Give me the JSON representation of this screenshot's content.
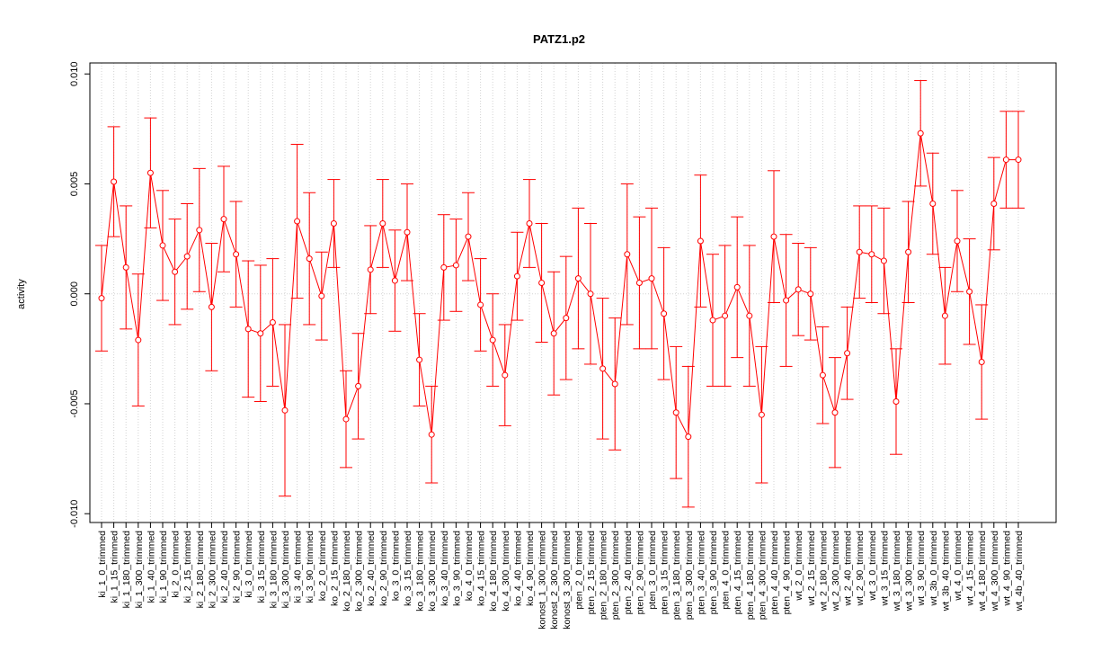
{
  "chart_data": {
    "type": "line",
    "title": "PATZ1.p2",
    "y_label": "activity",
    "color": "#ff0000",
    "grid": true,
    "categories": [
      "ki_1_0_trimmed",
      "ki_1_15_trimmed",
      "ki_1_180_trimmed",
      "ki_1_300_trimmed",
      "ki_1_40_trimmed",
      "ki_1_90_trimmed",
      "ki_2_0_trimmed",
      "ki_2_15_trimmed",
      "ki_2_180_trimmed",
      "ki_2_300_trimmed",
      "ki_2_40_trimmed",
      "ki_2_90_trimmed",
      "ki_3_0_trimmed",
      "ki_3_15_trimmed",
      "ki_3_180_trimmed",
      "ki_3_300_trimmed",
      "ki_3_40_trimmed",
      "ki_3_90_trimmed",
      "ko_2_0_trimmed",
      "ko_2_15_trimmed",
      "ko_2_180_trimmed",
      "ko_2_300_trimmed",
      "ko_2_40_trimmed",
      "ko_2_90_trimmed",
      "ko_3_0_trimmed",
      "ko_3_15_trimmed",
      "ko_3_180_trimmed",
      "ko_3_300_trimmed",
      "ko_3_40_trimmed",
      "ko_3_90_trimmed",
      "ko_4_0_trimmed",
      "ko_4_15_trimmed",
      "ko_4_180_trimmed",
      "ko_4_300_trimmed",
      "ko_4_40_trimmed",
      "ko_4_90_trimmed",
      "konost_1_300_trimmed",
      "konost_2_300_trimmed",
      "konost_3_300_trimmed",
      "pten_2_0_trimmed",
      "pten_2_15_trimmed",
      "pten_2_180_trimmed",
      "pten_2_300_trimmed",
      "pten_2_40_trimmed",
      "pten_2_90_trimmed",
      "pten_3_0_trimmed",
      "pten_3_15_trimmed",
      "pten_3_180_trimmed",
      "pten_3_300_trimmed",
      "pten_3_40_trimmed",
      "pten_3_90_trimmed",
      "pten_4_0_trimmed",
      "pten_4_15_trimmed",
      "pten_4_180_trimmed",
      "pten_4_300_trimmed",
      "pten_4_40_trimmed",
      "pten_4_90_trimmed",
      "wt_2_0_trimmed",
      "wt_2_15_trimmed",
      "wt_2_180_trimmed",
      "wt_2_300_trimmed",
      "wt_2_40_trimmed",
      "wt_2_90_trimmed",
      "wt_3_0_trimmed",
      "wt_3_15_trimmed",
      "wt_3_180_trimmed",
      "wt_3_300_trimmed",
      "wt_3_90_trimmed",
      "wt_3b_0_trimmed",
      "wt_3b_40_trimmed",
      "wt_4_0_trimmed",
      "wt_4_15_trimmed",
      "wt_4_180_trimmed",
      "wt_4_300_trimmed",
      "wt_4_90_trimmed",
      "wt_4b_40_trimmed"
    ],
    "values": [
      -0.0002,
      0.0051,
      0.0012,
      -0.0021,
      0.0055,
      0.0022,
      0.001,
      0.0017,
      0.0029,
      -0.0006,
      0.0034,
      0.0018,
      -0.0016,
      -0.0018,
      -0.0013,
      -0.0053,
      0.0033,
      0.0016,
      -0.0001,
      0.0032,
      -0.0057,
      -0.0042,
      0.0011,
      0.0032,
      0.0006,
      0.0028,
      -0.003,
      -0.0064,
      0.0012,
      0.0013,
      0.0026,
      -0.0005,
      -0.0021,
      -0.0037,
      0.0008,
      0.0032,
      0.0005,
      -0.0018,
      -0.0011,
      0.0007,
      0.0,
      -0.0034,
      -0.0041,
      0.0018,
      0.0005,
      0.0007,
      -0.0009,
      -0.0054,
      -0.0065,
      0.0024,
      -0.0012,
      -0.001,
      0.0003,
      -0.001,
      -0.0055,
      0.0026,
      -0.0003,
      0.0002,
      0.0,
      -0.0037,
      -0.0054,
      -0.0027,
      0.0019,
      0.0018,
      0.0015,
      -0.0049,
      0.0019,
      0.0073,
      0.0041,
      -0.001,
      0.0024,
      0.0001,
      -0.0031,
      0.0041,
      0.0061,
      0.0061
    ],
    "errors": [
      0.0024,
      0.0025,
      0.0028,
      0.003,
      0.0025,
      0.0025,
      0.0024,
      0.0024,
      0.0028,
      0.0029,
      0.0024,
      0.0024,
      0.0031,
      0.0031,
      0.0029,
      0.0039,
      0.0035,
      0.003,
      0.002,
      0.002,
      0.0022,
      0.0024,
      0.002,
      0.002,
      0.0023,
      0.0022,
      0.0021,
      0.0022,
      0.0024,
      0.0021,
      0.002,
      0.0021,
      0.0021,
      0.0023,
      0.002,
      0.002,
      0.0027,
      0.0028,
      0.0028,
      0.0032,
      0.0032,
      0.0032,
      0.003,
      0.0032,
      0.003,
      0.0032,
      0.003,
      0.003,
      0.0032,
      0.003,
      0.003,
      0.0032,
      0.0032,
      0.0032,
      0.0031,
      0.003,
      0.003,
      0.0021,
      0.0021,
      0.0022,
      0.0025,
      0.0021,
      0.0021,
      0.0022,
      0.0024,
      0.0024,
      0.0023,
      0.0024,
      0.0023,
      0.0022,
      0.0023,
      0.0024,
      0.0026,
      0.0021,
      0.0022,
      0.0022
    ],
    "ylim": [
      -0.0104,
      0.0105
    ],
    "yticks": [
      {
        "value": -0.01,
        "label": "-0.010"
      },
      {
        "value": -0.005,
        "label": "-0.005"
      },
      {
        "value": 0,
        "label": "0.000"
      },
      {
        "value": 0.005,
        "label": "0.005"
      },
      {
        "value": 0.01,
        "label": "0.010"
      }
    ]
  }
}
